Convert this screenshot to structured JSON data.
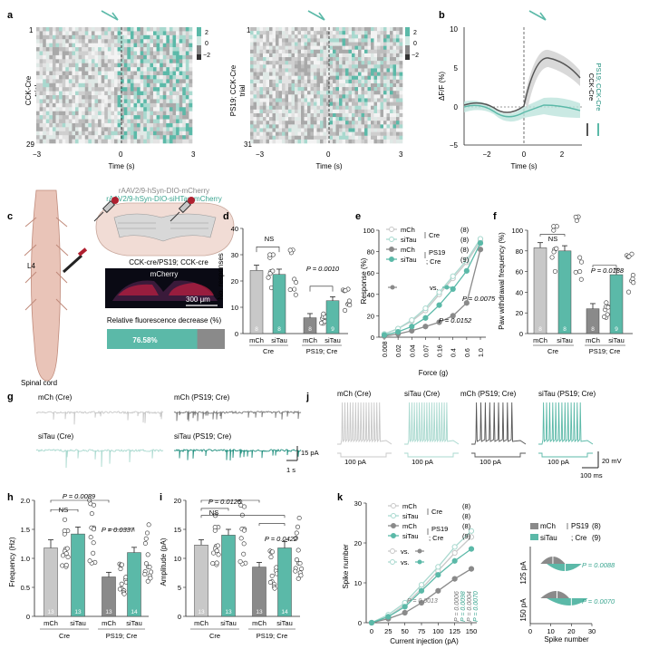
{
  "colors": {
    "teal": "#5bb9a8",
    "darkteal": "#1f8f7e",
    "grey": "#8a8a8a",
    "dark": "#555555",
    "light": "#c8c8c8",
    "lightteal": "#a9d9cf"
  },
  "panels": {
    "a": "a",
    "b": "b",
    "c": "c",
    "d": "d",
    "e": "e",
    "f": "f",
    "g": "g",
    "h": "h",
    "i": "i",
    "j": "j",
    "k": "k"
  },
  "panel_a": {
    "left": {
      "ylabel": "CCK-Cre",
      "ylabel2": "trial",
      "top_tick": "1",
      "bottom_tick": "29",
      "x_ticks": [
        "−3",
        "0",
        "3"
      ],
      "xlabel": "Time (s)",
      "cbar": [
        "2",
        "0",
        "−2"
      ]
    },
    "right": {
      "ylabel": "PS19; CCK-Cre",
      "ylabel2": "trial",
      "top_tick": "1",
      "bottom_tick": "31",
      "x_ticks": [
        "−3",
        "0",
        "3"
      ],
      "xlabel": "Time (s)",
      "cbar": [
        "2",
        "0",
        "−2"
      ]
    }
  },
  "panel_b": {
    "ylabel": "ΔF/F (%)",
    "y_ticks": [
      "10",
      "5",
      "0",
      "−5"
    ],
    "x_ticks": [
      "−2",
      "0",
      "2"
    ],
    "xlabel": "Time (s)",
    "legend": [
      "CCK-Cre",
      "PS19; CCK-Cre"
    ]
  },
  "panel_c": {
    "virus1": "rAAV2/9-hSyn-DIO-mCherry",
    "virus2": "rAAV2/9-hSyn-DIO-siHTau-mCherry",
    "genotype": "CCK-cre/PS19; CCK-cre",
    "stain": "mCherry",
    "scale": "300 μm",
    "level": "L4",
    "spinal": "Spinal cord",
    "bar_title": "Relative fluorescence decrease (%)",
    "bar_value": "76.58%"
  },
  "panel_d": {
    "ylabel": "No. responses",
    "y_ticks": [
      "40",
      "30",
      "20",
      "10",
      "0"
    ],
    "ns": "NS",
    "p": "P = 0.0010",
    "groups": [
      "mCh",
      "siTau",
      "mCh",
      "siTau"
    ],
    "genotypes": [
      "Cre",
      "PS19; Cre"
    ],
    "ns_labels": [
      "8",
      "8",
      "8",
      "9"
    ],
    "chart_data": {
      "type": "bar",
      "categories": [
        "mCh Cre",
        "siTau Cre",
        "mCh PS19; Cre",
        "siTau PS19; Cre"
      ],
      "values": [
        24,
        22.5,
        6,
        12.5
      ],
      "errors": [
        2,
        2,
        1.6,
        1.5
      ],
      "ylim": [
        0,
        40
      ],
      "ylabel": "No. responses"
    }
  },
  "panel_e": {
    "ylabel": "Response (%)",
    "xlabel": "Force (g)",
    "y_ticks": [
      "100",
      "80",
      "60",
      "40",
      "20",
      "0"
    ],
    "x_ticks": [
      "0.008",
      "0.02",
      "0.04",
      "0.07",
      "0.16",
      "0.4",
      "0.6",
      "1.0"
    ],
    "legend": [
      {
        "label": "mCh",
        "n": "(8)"
      },
      {
        "label": "siTau",
        "n": "(8)"
      },
      {
        "label": "mCh",
        "n": "(8)"
      },
      {
        "label": "siTau",
        "n": "(9)"
      }
    ],
    "legend_group1": "Cre",
    "legend_group2a": "PS19",
    "legend_group2b": "; Cre",
    "vs": "vs.",
    "p1": "P = 0.0075",
    "p2": "P = 0.0152",
    "chart_data": {
      "type": "line",
      "x": [
        "0.008",
        "0.02",
        "0.04",
        "0.07",
        "0.16",
        "0.4",
        "0.6",
        "1.0"
      ],
      "ylim": [
        0,
        100
      ],
      "series": [
        {
          "name": "mCh Cre",
          "values": [
            3,
            8,
            15,
            25,
            40,
            55,
            70,
            90
          ]
        },
        {
          "name": "siTau Cre",
          "values": [
            3,
            8,
            16,
            27,
            42,
            57,
            72,
            92
          ]
        },
        {
          "name": "mCh PS19; Cre",
          "values": [
            1,
            3,
            6,
            10,
            14,
            20,
            32,
            82
          ]
        },
        {
          "name": "siTau PS19; Cre",
          "values": [
            2,
            5,
            10,
            18,
            30,
            45,
            62,
            88
          ]
        }
      ]
    }
  },
  "panel_f": {
    "ylabel": "Paw withdrawal frequency (%)",
    "y_ticks": [
      "100",
      "80",
      "60",
      "40",
      "20",
      "0"
    ],
    "ns": "NS",
    "p": "P = 0.0188",
    "groups": [
      "mCh",
      "siTau",
      "mCh",
      "siTau"
    ],
    "genotypes": [
      "Cre",
      "PS19; Cre"
    ],
    "ns_labels": [
      "8",
      "8",
      "8",
      "9"
    ],
    "chart_data": {
      "type": "bar",
      "categories": [
        "mCh Cre",
        "siTau Cre",
        "mCh PS19; Cre",
        "siTau PS19; Cre"
      ],
      "values": [
        83,
        80,
        24,
        57
      ],
      "errors": [
        5,
        5,
        5,
        6
      ],
      "ylim": [
        0,
        100
      ]
    }
  },
  "panel_g": {
    "t1": "mCh (Cre)",
    "t2": "mCh (PS19; Cre)",
    "t3": "siTau (Cre)",
    "t4": "siTau (PS19; Cre)",
    "scale_y": "15 pA",
    "scale_x": "1 s"
  },
  "panel_h": {
    "ylabel": "Frequency (Hz)",
    "y_ticks": [
      "2.0",
      "1.5",
      "1.0",
      "0.5",
      "0"
    ],
    "p1": "P = 0.0089",
    "ns": "NS",
    "p2": "P = 0.0337",
    "groups": [
      "mCh",
      "siTau",
      "mCh",
      "siTau"
    ],
    "genotypes": [
      "Cre",
      "PS19; Cre"
    ],
    "ns_labels": [
      "13",
      "13",
      "13",
      "14"
    ],
    "chart_data": {
      "type": "bar",
      "categories": [
        "mCh Cre",
        "siTau Cre",
        "mCh PS19; Cre",
        "siTau PS19; Cre"
      ],
      "values": [
        1.18,
        1.42,
        0.68,
        1.1
      ],
      "errors": [
        0.14,
        0.12,
        0.08,
        0.09
      ],
      "ylim": [
        0,
        2.0
      ],
      "ylabel": "Frequency (Hz)"
    }
  },
  "panel_i": {
    "ylabel": "Amplitude (pA)",
    "y_ticks": [
      "20",
      "15",
      "10",
      "5",
      "0"
    ],
    "p1": "P = 0.0125",
    "ns": "NS",
    "p2": "P = 0.0422",
    "groups": [
      "mCh",
      "siTau",
      "mCh",
      "siTau"
    ],
    "genotypes": [
      "Cre",
      "PS19; Cre"
    ],
    "ns_labels": [
      "13",
      "13",
      "13",
      "14"
    ],
    "chart_data": {
      "type": "bar",
      "categories": [
        "mCh Cre",
        "siTau Cre",
        "mCh PS19; Cre",
        "siTau PS19; Cre"
      ],
      "values": [
        12.3,
        14,
        8.5,
        11.8
      ],
      "errors": [
        0.9,
        1,
        0.8,
        1.1
      ],
      "ylim": [
        0,
        20
      ],
      "ylabel": "Amplitude (pA)"
    }
  },
  "panel_j": {
    "t1": "mCh (Cre)",
    "t2": "siTau (Cre)",
    "t3": "mCh (PS19; Cre)",
    "t4": "siTau (PS19; Cre)",
    "step": "100 pA",
    "scale_y": "20 mV",
    "scale_x": "100 ms"
  },
  "panel_k": {
    "ylabel": "Spike number",
    "xlabel": "Current injection (pA)",
    "y_ticks": [
      "30",
      "20",
      "10",
      "0"
    ],
    "x_ticks": [
      "0",
      "25",
      "50",
      "75",
      "100",
      "125",
      "150"
    ],
    "legend": [
      {
        "label": "mCh",
        "n": "(8)"
      },
      {
        "label": "siTau",
        "n": "(8)"
      },
      {
        "label": "mCh",
        "n": "(8)"
      },
      {
        "label": "siTau",
        "n": "(9)"
      }
    ],
    "legend_group1": "Cre",
    "legend_group2a": "PS19",
    "legend_group2b": "; Cre",
    "vs": "vs.",
    "pvals": [
      "P = 0.0013",
      "P = 0.0006",
      "P = 0.0098",
      "P = 0.0004",
      "P = 0.0070"
    ],
    "chart_data": {
      "type": "line",
      "x": [
        0,
        25,
        50,
        75,
        100,
        125,
        150
      ],
      "ylim": [
        0,
        30
      ],
      "series": [
        {
          "name": "mCh Cre",
          "values": [
            0,
            1.5,
            4.5,
            8.5,
            13,
            17.5,
            21.5
          ]
        },
        {
          "name": "siTau Cre",
          "values": [
            0,
            2,
            5,
            9.5,
            14,
            19,
            23
          ]
        },
        {
          "name": "mCh PS19; Cre",
          "values": [
            0,
            1,
            2.5,
            5,
            8,
            11,
            13.5
          ]
        },
        {
          "name": "siTau PS19; Cre",
          "values": [
            0,
            1.5,
            4,
            8,
            12,
            15.5,
            18.5
          ]
        }
      ]
    },
    "inset": {
      "legend_a": "mCh",
      "legend_b": "siTau",
      "legend_grp1": "PS19",
      "legend_grp2": "; Cre",
      "n1": "(8)",
      "n2": "(9)",
      "rows": [
        "125 pA",
        "150 pA"
      ],
      "p1": "P = 0.0088",
      "p2": "P = 0.0070",
      "xlabel": "Spike number",
      "x_ticks": [
        "0",
        "10",
        "20",
        "30"
      ]
    }
  }
}
